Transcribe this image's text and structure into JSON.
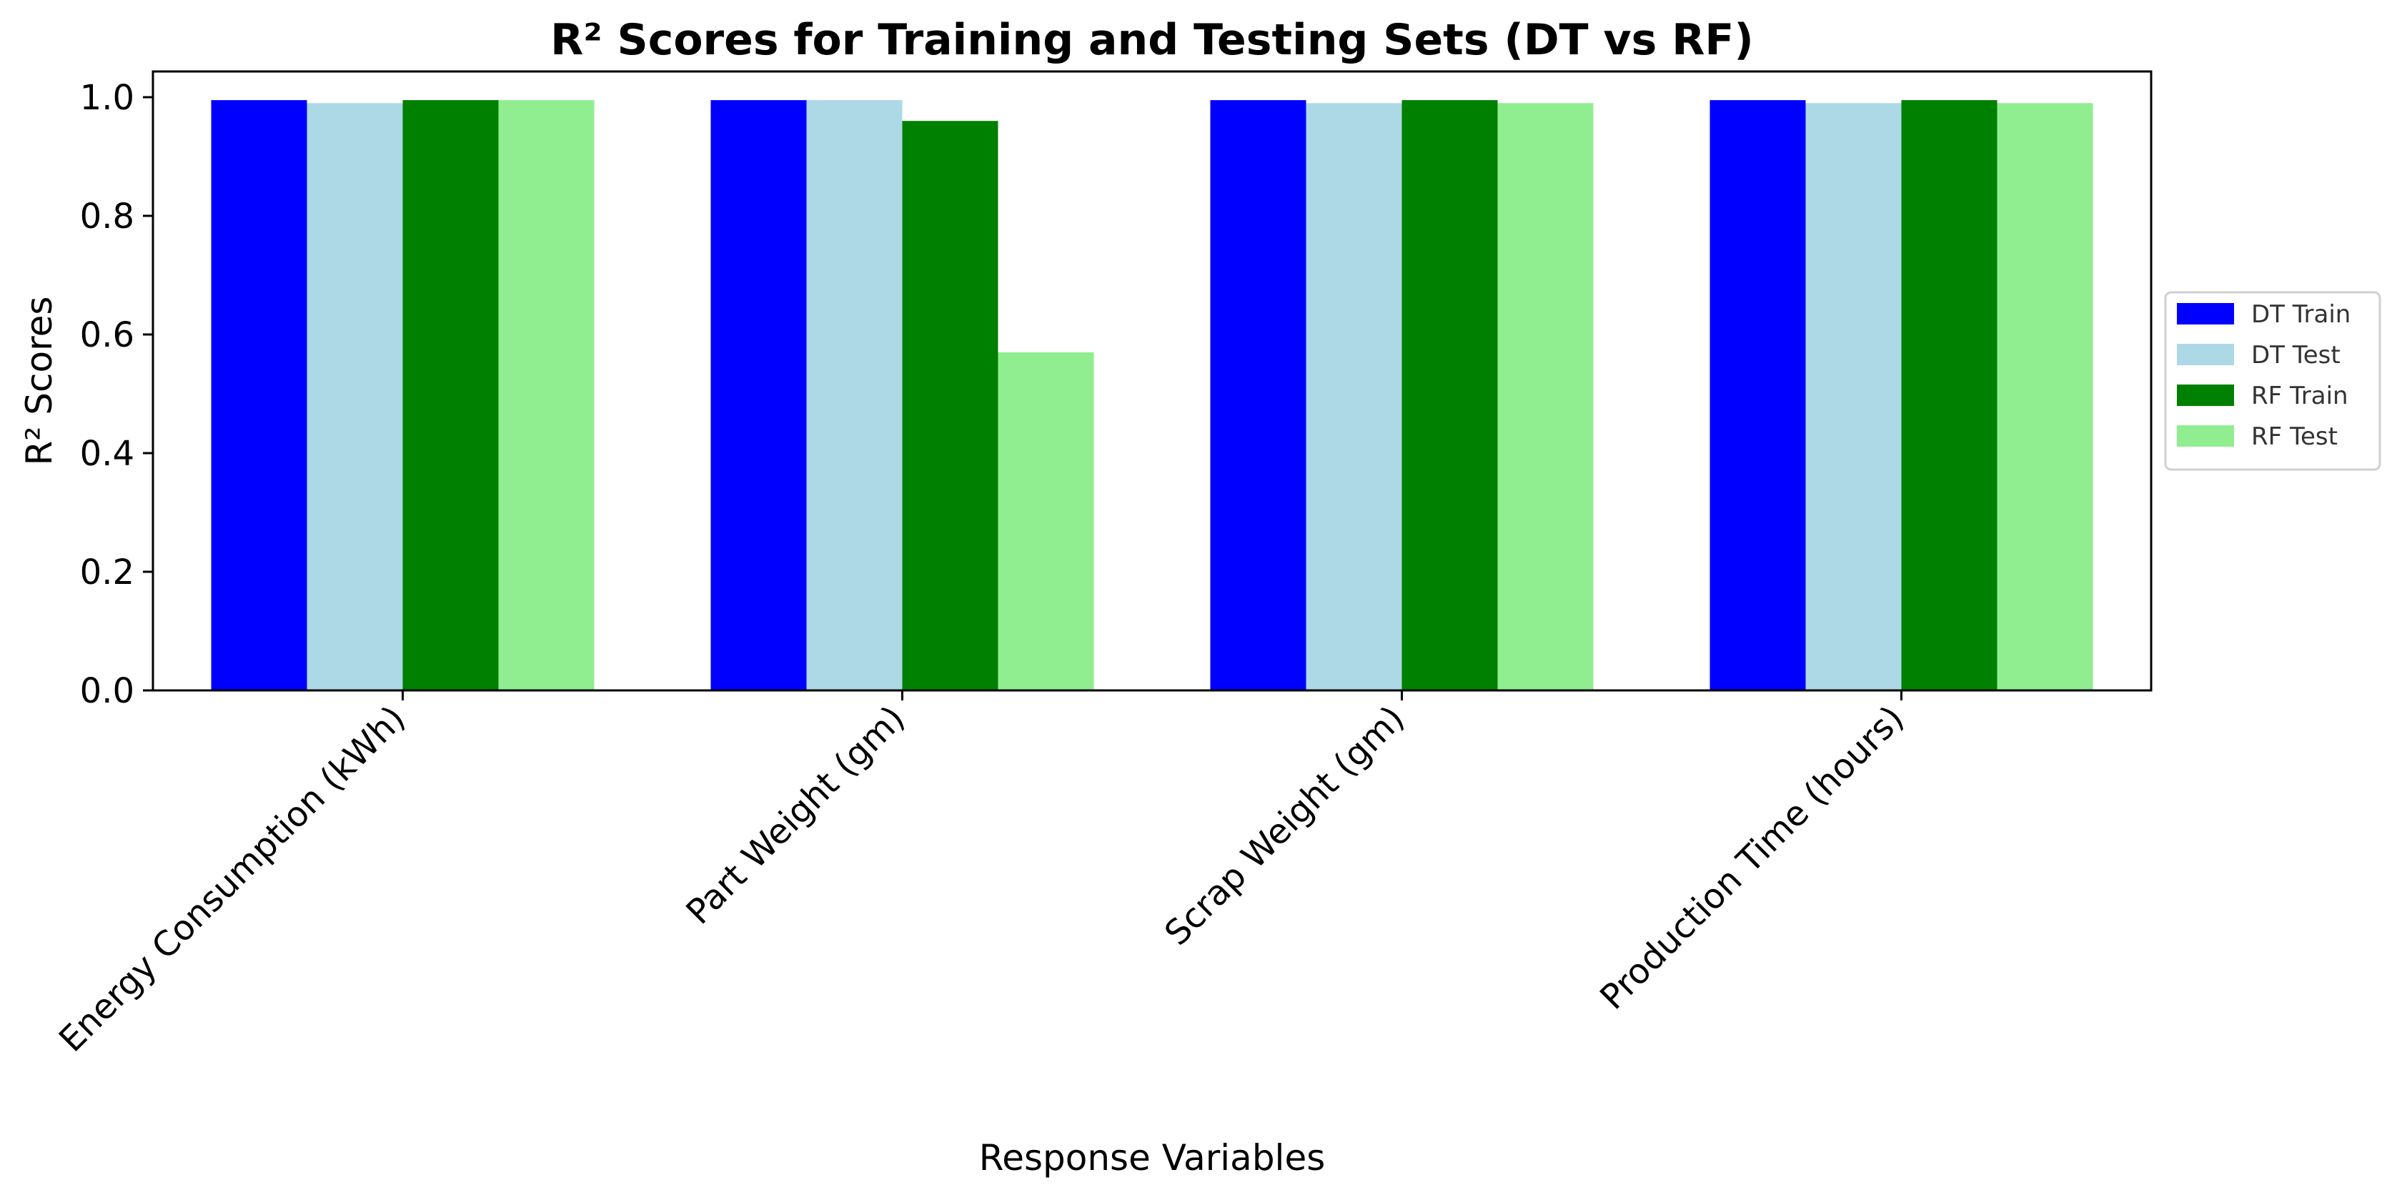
{
  "chart_data": {
    "type": "bar",
    "title": "R² Scores for Training and Testing Sets (DT vs RF)",
    "xlabel": "Response Variables",
    "ylabel": "R² Scores",
    "categories": [
      "Energy Consumption (kWh)",
      "Part Weight (gm)",
      "Scrap Weight (gm)",
      "Production Time (hours)"
    ],
    "series": [
      {
        "name": "DT Train",
        "color": "#0000ff",
        "values": [
          0.995,
          0.995,
          0.995,
          0.995
        ]
      },
      {
        "name": "DT Test",
        "color": "#add8e6",
        "values": [
          0.99,
          0.995,
          0.99,
          0.99
        ]
      },
      {
        "name": "RF Train",
        "color": "#008000",
        "values": [
          0.995,
          0.96,
          0.995,
          0.995
        ]
      },
      {
        "name": "RF Test",
        "color": "#90ee90",
        "values": [
          0.995,
          0.57,
          0.99,
          0.99
        ]
      }
    ],
    "ylim": [
      0,
      1.0
    ],
    "yticks": [
      "0.0",
      "0.2",
      "0.4",
      "0.6",
      "0.8",
      "1.0"
    ],
    "grid": false,
    "legend_position": "right, outside"
  }
}
